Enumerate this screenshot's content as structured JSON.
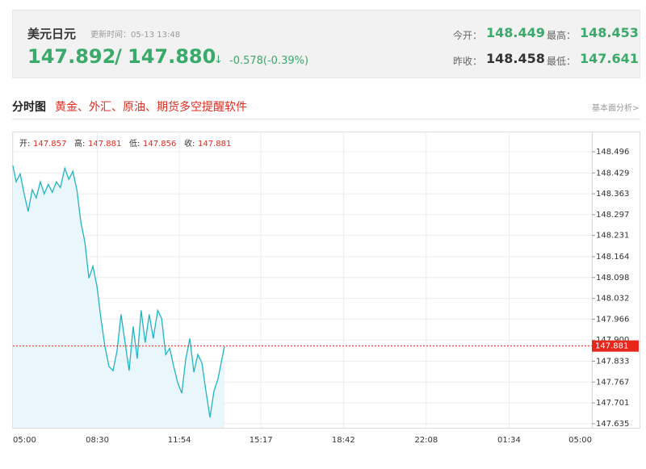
{
  "header": {
    "pair": "美元日元",
    "updated": "更新时间：05-13 13:48",
    "bid": "147.892",
    "separator": "/",
    "ask": "147.880",
    "arrow": "↓",
    "change": "-0.578(-0.39%)",
    "stats": [
      {
        "label": "今开：",
        "value": "148.449"
      },
      {
        "label": "最高：",
        "value": "148.453"
      },
      {
        "label": "昨收：",
        "value": "148.458"
      },
      {
        "label": "最低：",
        "value": "147.641"
      }
    ]
  },
  "section": {
    "title": "分时图",
    "promo": "黄金、外汇、原油、期货多空提醒软件",
    "link": "基本面分析>"
  },
  "ohlc": [
    {
      "label": "开:",
      "value": "147.857"
    },
    {
      "label": "高:",
      "value": "147.881"
    },
    {
      "label": "低:",
      "value": "147.856"
    },
    {
      "label": "收:",
      "value": "147.881"
    }
  ],
  "chart_data": {
    "type": "line",
    "grid": true,
    "xlim": [
      0,
      1440
    ],
    "xticks": [
      {
        "value": 0,
        "label": "05:00"
      },
      {
        "value": 210,
        "label": "08:30"
      },
      {
        "value": 414,
        "label": "11:54"
      },
      {
        "value": 617,
        "label": "15:17"
      },
      {
        "value": 822,
        "label": "18:42"
      },
      {
        "value": 1028,
        "label": "22:08"
      },
      {
        "value": 1234,
        "label": "01:34"
      },
      {
        "value": 1440,
        "label": "05:00"
      }
    ],
    "ylim": [
      147.622,
      148.56
    ],
    "yticks": [
      148.496,
      148.429,
      148.363,
      148.297,
      148.231,
      148.164,
      148.098,
      148.032,
      147.966,
      {
        "value": 147.9,
        "label": "147.900"
      },
      147.833,
      147.767,
      147.701,
      147.635
    ],
    "current_price": {
      "value": 147.881,
      "label": "147.881",
      "color": "#e8271c"
    },
    "series": [
      {
        "color": "#1fb5c6",
        "fill": "#e9f6fb",
        "x": [
          0,
          8,
          18,
          28,
          38,
          48,
          58,
          68,
          78,
          88,
          98,
          108,
          118,
          129,
          139,
          149,
          159,
          169,
          179,
          189,
          199,
          209,
          219,
          229,
          239,
          249,
          259,
          269,
          279,
          289,
          299,
          309,
          319,
          329,
          339,
          349,
          360,
          370,
          380,
          390,
          400,
          410,
          420,
          430,
          440,
          450,
          460,
          470,
          480,
          490,
          500,
          510,
          520,
          526
        ],
        "values": [
          148.452,
          148.401,
          148.426,
          148.363,
          148.307,
          148.376,
          148.35,
          148.401,
          148.363,
          148.393,
          148.368,
          148.401,
          148.383,
          148.444,
          148.409,
          148.434,
          148.376,
          148.274,
          148.21,
          148.096,
          148.134,
          148.07,
          147.968,
          147.879,
          147.816,
          147.803,
          147.867,
          147.981,
          147.892,
          147.803,
          147.943,
          147.841,
          147.994,
          147.892,
          147.981,
          147.905,
          147.994,
          147.968,
          147.854,
          147.874,
          147.816,
          147.765,
          147.732,
          147.841,
          147.905,
          147.798,
          147.854,
          147.828,
          147.739,
          147.655,
          147.739,
          147.777,
          147.841,
          147.879
        ]
      }
    ]
  }
}
